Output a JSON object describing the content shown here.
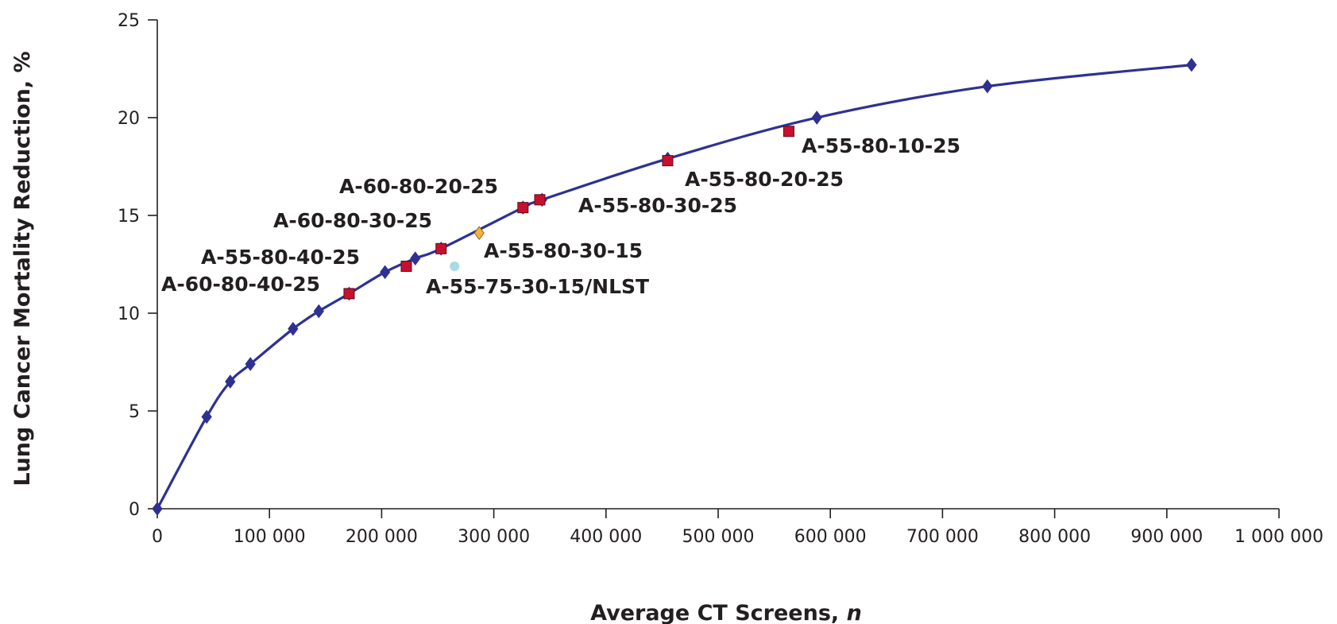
{
  "chart_data": {
    "type": "scatter",
    "xlabel": "Average CT Screens, ",
    "xlabel_italic": "n",
    "ylabel": "Lung Cancer Mortality Reduction, %",
    "xlim": [
      0,
      1000000
    ],
    "ylim": [
      0,
      25
    ],
    "x_ticks": [
      0,
      100000,
      200000,
      300000,
      400000,
      500000,
      600000,
      700000,
      800000,
      900000,
      1000000
    ],
    "x_tick_labels": [
      "0",
      "100 000",
      "200 000",
      "300 000",
      "400 000",
      "500 000",
      "600 000",
      "700 000",
      "800 000",
      "900 000",
      "1 000 000"
    ],
    "y_ticks": [
      0,
      5,
      10,
      15,
      20,
      25
    ],
    "y_tick_labels": [
      "0",
      "5",
      "10",
      "15",
      "20",
      "25"
    ],
    "grid": false,
    "colors": {
      "frontier": "#2e3192",
      "frontier_marker": "#2e3192",
      "highlight_marker": "#c8102e",
      "nlst_marker": "#fbb040",
      "nlst_study_marker": "#a6dce6",
      "axis": "#231f20"
    },
    "series": [
      {
        "marker": "diamond",
        "color": "#2e3192",
        "line": true,
        "points": [
          {
            "x": 0,
            "y": 0
          },
          {
            "x": 44000,
            "y": 4.7
          },
          {
            "x": 65000,
            "y": 6.5
          },
          {
            "x": 83000,
            "y": 7.4
          },
          {
            "x": 121000,
            "y": 9.2
          },
          {
            "x": 144000,
            "y": 10.1
          },
          {
            "x": 171000,
            "y": 11.0
          },
          {
            "x": 203000,
            "y": 12.1
          },
          {
            "x": 230000,
            "y": 12.8
          },
          {
            "x": 253000,
            "y": 13.3
          },
          {
            "x": 326000,
            "y": 15.4
          },
          {
            "x": 343000,
            "y": 15.8
          },
          {
            "x": 455000,
            "y": 17.9
          },
          {
            "x": 588000,
            "y": 20.0
          },
          {
            "x": 740000,
            "y": 21.6
          },
          {
            "x": 922000,
            "y": 22.7
          }
        ]
      },
      {
        "marker": "square",
        "color": "#c8102e",
        "line": false,
        "points": [
          {
            "x": 171000,
            "y": 11.0,
            "label": "A-60-80-40-25"
          },
          {
            "x": 222000,
            "y": 12.4,
            "label": "A-55-80-40-25"
          },
          {
            "x": 253000,
            "y": 13.3,
            "label": "A-60-80-30-25"
          },
          {
            "x": 326000,
            "y": 15.4,
            "label": "A-60-80-20-25"
          },
          {
            "x": 341000,
            "y": 15.8,
            "label": "A-55-80-30-25"
          },
          {
            "x": 455000,
            "y": 17.8,
            "label": "A-55-80-20-25"
          },
          {
            "x": 563000,
            "y": 19.3,
            "label": "A-55-80-10-25"
          }
        ]
      },
      {
        "marker": "diamond",
        "color": "#fbb040",
        "line": false,
        "points": [
          {
            "x": 287000,
            "y": 14.1,
            "label": "A-55-80-30-15"
          }
        ]
      },
      {
        "marker": "circle",
        "color": "#a6dce6",
        "line": false,
        "points": [
          {
            "x": 265000,
            "y": 12.4,
            "label": "A-55-75-30-15/NLST"
          }
        ]
      }
    ],
    "annotations": [
      {
        "text": "A-60-80-40-25"
      },
      {
        "text": "A-55-80-40-25"
      },
      {
        "text": "A-60-80-30-25"
      },
      {
        "text": "A-60-80-20-25"
      },
      {
        "text": "A-55-80-30-25"
      },
      {
        "text": "A-55-80-30-15"
      },
      {
        "text": "A-55-75-30-15/NLST"
      },
      {
        "text": "A-55-80-20-25"
      },
      {
        "text": "A-55-80-10-25"
      }
    ]
  }
}
